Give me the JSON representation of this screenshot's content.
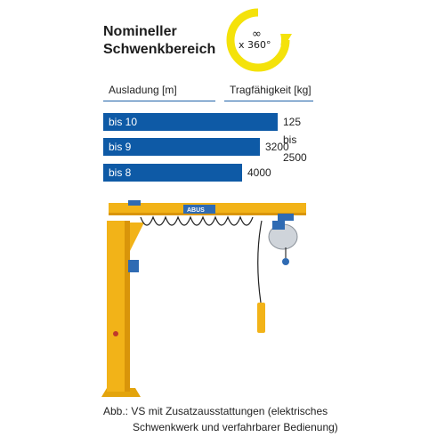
{
  "header": {
    "title_line1": "Nomineller",
    "title_line2": "Schwenkbereich",
    "swing_infinity": "∞",
    "swing_angle": "x 360°"
  },
  "table": {
    "col_reach": "Ausladung [m]",
    "col_capacity": "Tragfähigkeit [kg]",
    "rows": [
      {
        "reach": "bis 10",
        "capacity": "125 bis 2500"
      },
      {
        "reach": "bis 9",
        "capacity": "3200"
      },
      {
        "reach": "bis 8",
        "capacity": "4000"
      }
    ]
  },
  "crane": {
    "brand_label": "ABUS"
  },
  "caption": {
    "line1": "Abb.: VS mit Zusatzausstattungen (elektrisches",
    "line2": "Schwenkwerk und verfahrbarer Bedienung)"
  },
  "colors": {
    "accent_blue": "#0e5aa6",
    "crane_yellow": "#f2b318",
    "swing_icon_yellow": "#f4e20a"
  }
}
